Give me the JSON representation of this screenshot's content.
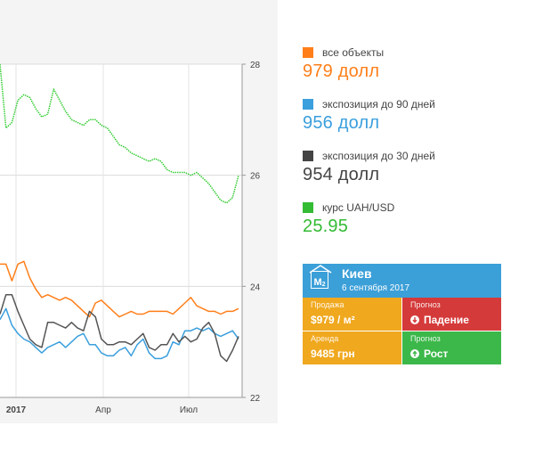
{
  "chart_data": {
    "type": "line",
    "x_ticks": [
      "2017",
      "Апр",
      "Июл"
    ],
    "y_right_ticks": [
      "28",
      "26",
      "24",
      "22"
    ],
    "y_right_range": [
      22,
      28
    ],
    "grid": true,
    "series": [
      {
        "name": "курс UAH/USD",
        "color": "#33cc33",
        "axis": "right",
        "values": [
          28.0,
          26.85,
          26.95,
          27.35,
          27.45,
          27.4,
          27.2,
          27.05,
          27.1,
          27.55,
          27.35,
          27.15,
          27.0,
          26.95,
          26.9,
          27.0,
          27.0,
          26.9,
          26.85,
          26.7,
          26.55,
          26.5,
          26.4,
          26.35,
          26.3,
          26.25,
          26.3,
          26.25,
          26.1,
          26.05,
          26.05,
          26.05,
          26.0,
          26.05,
          25.95,
          25.85,
          25.7,
          25.55,
          25.5,
          25.6,
          26.0
        ]
      },
      {
        "name": "все объекты",
        "color": "#ff7f1a",
        "axis": "left",
        "values": [
          24.4,
          24.4,
          24.1,
          24.4,
          24.45,
          24.15,
          23.95,
          23.8,
          23.85,
          23.8,
          23.75,
          23.8,
          23.75,
          23.65,
          23.55,
          23.45,
          23.7,
          23.75,
          23.65,
          23.55,
          23.45,
          23.5,
          23.55,
          23.5,
          23.5,
          23.55,
          23.55,
          23.55,
          23.55,
          23.5,
          23.6,
          23.7,
          23.8,
          23.65,
          23.6,
          23.55,
          23.55,
          23.5,
          23.55,
          23.55,
          23.6
        ]
      },
      {
        "name": "экспозиция до 90 дней",
        "color": "#3a9fdd",
        "axis": "left",
        "values": [
          23.4,
          23.6,
          23.3,
          23.15,
          23.05,
          23.0,
          22.9,
          22.8,
          22.9,
          22.95,
          23.0,
          22.9,
          23.0,
          23.1,
          23.15,
          22.95,
          22.95,
          22.8,
          22.75,
          22.75,
          22.85,
          22.9,
          22.75,
          22.95,
          23.05,
          22.8,
          22.7,
          22.7,
          22.75,
          23.0,
          22.95,
          23.2,
          23.2,
          23.25,
          23.2,
          23.25,
          23.15,
          23.1,
          23.15,
          23.2,
          23.05
        ]
      },
      {
        "name": "экспозиция до 30 дней",
        "color": "#555555",
        "axis": "left",
        "values": [
          23.5,
          23.85,
          23.85,
          23.55,
          23.3,
          23.05,
          22.95,
          22.9,
          23.35,
          23.35,
          23.3,
          23.25,
          23.35,
          23.25,
          23.2,
          23.55,
          23.45,
          23.05,
          22.95,
          22.95,
          23.0,
          23.0,
          22.95,
          23.05,
          23.15,
          22.9,
          22.85,
          22.95,
          22.95,
          23.15,
          23.0,
          23.1,
          23.0,
          23.05,
          23.25,
          23.35,
          23.15,
          22.75,
          22.65,
          22.85,
          23.1
        ]
      }
    ]
  },
  "legend": [
    {
      "label": "все объекты",
      "value": "979 долл",
      "color": "#ff7f1a"
    },
    {
      "label": "экспозиция до 90 дней",
      "value": "956 долл",
      "color": "#3a9fdd"
    },
    {
      "label": "экспозиция до 30 дней",
      "value": "954 долл",
      "color": "#444444"
    },
    {
      "label": "курс UAH/USD",
      "value": "25.95",
      "color": "#33bb33"
    }
  ],
  "widget": {
    "logo": "М²",
    "city": "Киев",
    "date": "6 сентября 2017",
    "sale_caption": "Продажа",
    "sale_value": "$979 / м²",
    "sale_forecast_caption": "Прогноз",
    "sale_forecast_value": "Падение",
    "rent_caption": "Аренда",
    "rent_value": "9485 грн",
    "rent_forecast_caption": "Прогноз",
    "rent_forecast_value": "Рост",
    "colors": {
      "header": "#3b9fd8",
      "amber": "#f0a81e",
      "red": "#d53a3a",
      "green": "#3cb84a"
    }
  }
}
